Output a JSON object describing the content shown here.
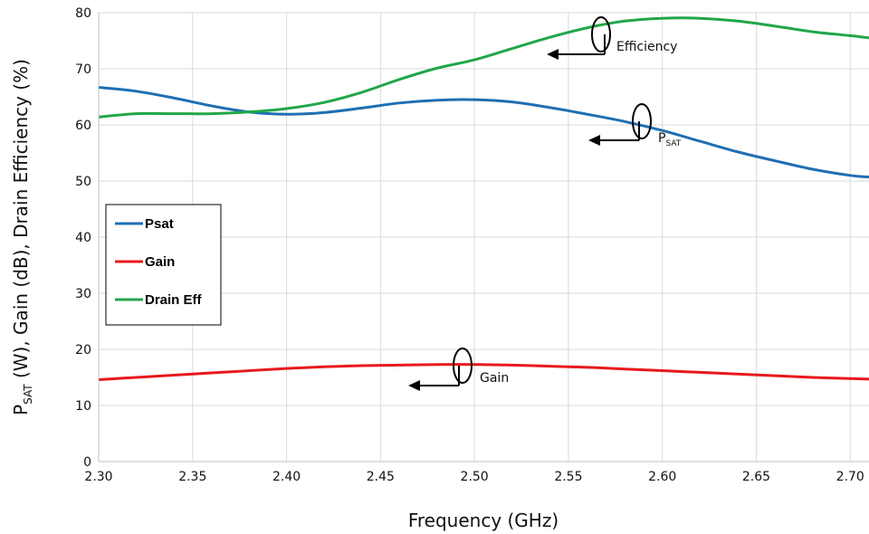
{
  "chart_data": {
    "type": "line",
    "xlabel": "Frequency (GHz)",
    "ylabel_main": "P",
    "ylabel_sub": "SAT",
    "ylabel_rest": " (W), Gain (dB), Drain Efficiency (%)",
    "xlim": [
      2.3,
      2.71
    ],
    "ylim": [
      0,
      80
    ],
    "xticks": [
      2.3,
      2.35,
      2.4,
      2.45,
      2.5,
      2.55,
      2.6,
      2.65,
      2.7
    ],
    "xtick_labels": [
      "2.30",
      "2.35",
      "2.40",
      "2.45",
      "2.50",
      "2.55",
      "2.60",
      "2.65",
      "2.70"
    ],
    "yticks": [
      0,
      10,
      20,
      30,
      40,
      50,
      60,
      70,
      80
    ],
    "ytick_labels": [
      "0",
      "10",
      "20",
      "30",
      "40",
      "50",
      "60",
      "70",
      "80"
    ],
    "grid": true,
    "legend_position": "left-middle",
    "series": [
      {
        "name": "Psat",
        "color": "#1f6fb2",
        "x": [
          2.3,
          2.32,
          2.34,
          2.36,
          2.38,
          2.4,
          2.42,
          2.44,
          2.46,
          2.48,
          2.5,
          2.52,
          2.54,
          2.56,
          2.58,
          2.6,
          2.62,
          2.64,
          2.66,
          2.68,
          2.7,
          2.71
        ],
        "y": [
          66.7,
          66.0,
          64.8,
          63.4,
          62.3,
          61.9,
          62.2,
          63.0,
          63.9,
          64.4,
          64.5,
          64.1,
          63.1,
          61.9,
          60.6,
          59.0,
          57.1,
          55.2,
          53.6,
          52.1,
          51.0,
          50.7
        ]
      },
      {
        "name": "Gain",
        "color": "#e8191c",
        "x": [
          2.3,
          2.32,
          2.34,
          2.36,
          2.38,
          2.4,
          2.42,
          2.44,
          2.46,
          2.48,
          2.5,
          2.52,
          2.54,
          2.56,
          2.58,
          2.6,
          2.62,
          2.64,
          2.66,
          2.68,
          2.7,
          2.71
        ],
        "y": [
          14.6,
          15.0,
          15.4,
          15.8,
          16.2,
          16.6,
          16.9,
          17.1,
          17.2,
          17.3,
          17.3,
          17.2,
          17.0,
          16.8,
          16.5,
          16.2,
          15.9,
          15.6,
          15.3,
          15.0,
          14.8,
          14.7
        ]
      },
      {
        "name": "Drain Eff",
        "color": "#21a64a",
        "x": [
          2.3,
          2.32,
          2.34,
          2.36,
          2.38,
          2.4,
          2.42,
          2.44,
          2.46,
          2.48,
          2.5,
          2.52,
          2.54,
          2.56,
          2.58,
          2.6,
          2.62,
          2.64,
          2.66,
          2.68,
          2.7,
          2.71
        ],
        "y": [
          61.4,
          62.0,
          62.0,
          62.0,
          62.3,
          62.9,
          64.0,
          65.8,
          68.1,
          70.1,
          71.6,
          73.6,
          75.6,
          77.3,
          78.5,
          79.0,
          79.0,
          78.5,
          77.6,
          76.6,
          75.9,
          75.5
        ]
      }
    ],
    "annotations": [
      {
        "text": "Efficiency",
        "sub": ""
      },
      {
        "text": "P",
        "sub": "SAT"
      },
      {
        "text": "Gain",
        "sub": ""
      }
    ]
  }
}
